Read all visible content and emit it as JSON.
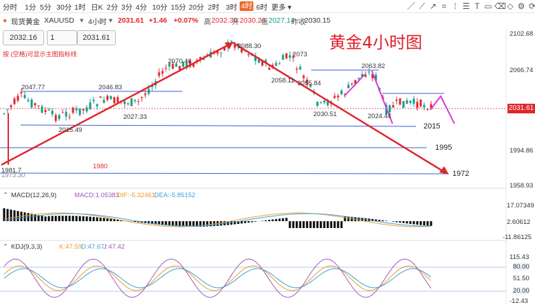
{
  "timeframes": [
    "分时",
    "1分",
    "5分",
    "30分",
    "1时",
    "日K",
    "2分",
    "3分",
    "4分",
    "10分",
    "15分",
    "20分",
    "2时",
    "3时",
    "4时",
    "6时",
    "更多"
  ],
  "active_timeframe": "4时",
  "symbol": {
    "name": "现货黄金",
    "code": "XAUUSD"
  },
  "interval": "4小时",
  "last": "2031.61",
  "change": "+1.46",
  "change_pct": "+0.07%",
  "high_label": "高",
  "high": "2032.39",
  "open_label": "开",
  "open": "2030.26",
  "low_label": "低",
  "low": "2027.14",
  "prev_label": "昨收",
  "prev": "2030.15",
  "bid_box": "2032.16",
  "qty_box": "1",
  "ask_box": "2031.61",
  "hint": "按 (空格)可显示主图指标线",
  "overlay_title": "黄金4小时图",
  "price_axis": [
    "2102.68",
    "2066.74",
    "2031.61",
    "1994.86",
    "1958.93"
  ],
  "annotations": [
    "2047.77",
    "2046.83",
    "2070.46",
    "2088.30",
    "2073",
    "2063.82",
    "2058.11",
    "2055.84",
    "2030.51",
    "2024.44",
    "2015.49",
    "2027.33",
    "1981.7",
    "1973.30",
    "1980",
    "2015",
    "1995",
    "1972"
  ],
  "macd": {
    "label": "MACD(12,26,9)",
    "macd": "MACD:1.05383",
    "dif": "DIF:-5.32461",
    "dea": "DEA:-5.85152",
    "axis": [
      "17.07349",
      "2.60612",
      "-11.86125"
    ]
  },
  "kdj": {
    "label": "KDJ(9,3,3)",
    "k": "K:47.59",
    "d": "D:47.67",
    "j": "J:47.42",
    "axis": [
      "115.43",
      "80.00",
      "51.50",
      "20.00",
      "-12.43"
    ]
  },
  "colors": {
    "up": "#e0262b",
    "down": "#0e9d86",
    "accent": "#ee6a2c",
    "line": "#3a5bd9"
  }
}
